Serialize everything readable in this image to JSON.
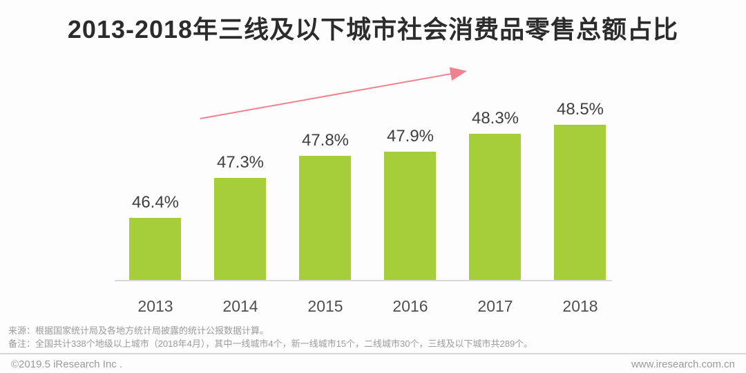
{
  "page": {
    "title": "2013-2018年三线及以下城市社会消费品零售总额占比"
  },
  "chart_data": {
    "type": "bar",
    "title": "2013-2018年三线及以下城市社会消费品零售总额占比",
    "categories": [
      "2013",
      "2014",
      "2015",
      "2016",
      "2017",
      "2018"
    ],
    "values": [
      46.4,
      47.3,
      47.8,
      47.9,
      48.3,
      48.5
    ],
    "value_labels": [
      "46.4%",
      "47.3%",
      "47.8%",
      "47.9%",
      "48.3%",
      "48.5%"
    ],
    "unit": "%",
    "xlabel": "",
    "ylabel": "",
    "ylim": [
      45,
      48.8
    ],
    "grid": false,
    "legend": false,
    "bar_color": "#a6ce39",
    "value_label_color": "#3f3f3f",
    "axis_line_color": "#d8d8d8",
    "annotations": [
      {
        "type": "arrow",
        "meaning": "upward-trend",
        "color": "#f0818e"
      }
    ]
  },
  "footer": {
    "source_line": "来源：根据国家统计局及各地方统计局披露的统计公报数据计算。",
    "note_line": "备注：全国共计338个地级以上城市（2018年4月），其中一线城市4个，新一线城市15个，二线城市30个，三线及以下城市共289个。"
  },
  "bottom_bar": {
    "copyright": "©2019.5 iResearch Inc .",
    "website": "www.iresearch.com.cn"
  }
}
